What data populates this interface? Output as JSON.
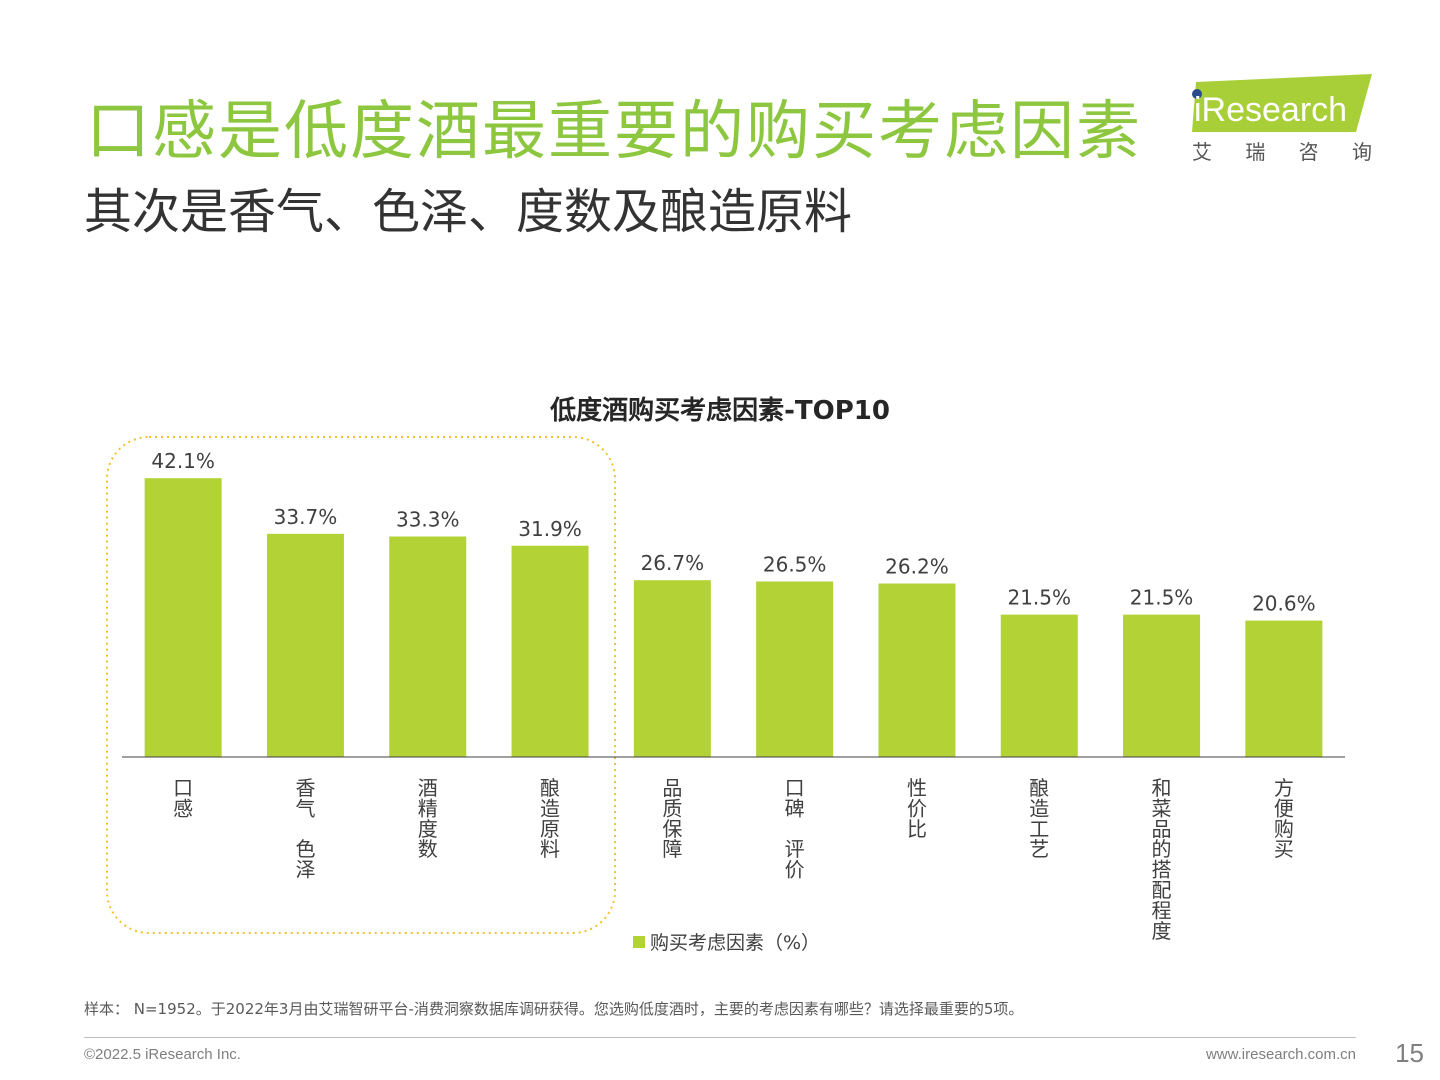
{
  "slide": {
    "title": "口感是低度酒最重要的购买考虑因素",
    "subtitle": "其次是香气、色泽、度数及酿造原料"
  },
  "logo": {
    "wordmark": "iResearch",
    "cn_chars": [
      "艾",
      "瑞",
      "咨",
      "询"
    ],
    "colors": {
      "green": "#a8cf38",
      "dot": "#2b4c8c"
    }
  },
  "chart_data": {
    "type": "bar",
    "title": "低度酒购买考虑因素-TOP10",
    "categories": [
      "口感",
      "香气、色泽",
      "酒精度数",
      "酿造原料",
      "品质保障",
      "口碑、评价",
      "性价比",
      "酿造工艺",
      "和菜品的搭配程度",
      "方便购买"
    ],
    "series": [
      {
        "name": "购买考虑因素（%）",
        "values": [
          42.1,
          33.7,
          33.3,
          31.9,
          26.7,
          26.5,
          26.2,
          21.5,
          21.5,
          20.6
        ]
      }
    ],
    "value_labels": [
      "42.1%",
      "33.7%",
      "33.3%",
      "31.9%",
      "26.7%",
      "26.5%",
      "26.2%",
      "21.5%",
      "21.5%",
      "20.6%"
    ],
    "ylim": [
      0,
      45
    ],
    "grid": false,
    "legend_position": "bottom",
    "highlight": "first four categories enclosed by dotted rounded box",
    "colors": {
      "bar": "#b2d235",
      "highlight_box": "#f2c12e",
      "axis": "#404040"
    }
  },
  "footer": {
    "note": "样本： N=1952。于2022年3月由艾瑞智研平台-消费洞察数据库调研获得。您选购低度酒时，主要的考虑因素有哪些？请选择最重要的5项。",
    "copyright": "©2022.5 iResearch Inc.",
    "website": "www.iresearch.com.cn",
    "page": "15"
  }
}
